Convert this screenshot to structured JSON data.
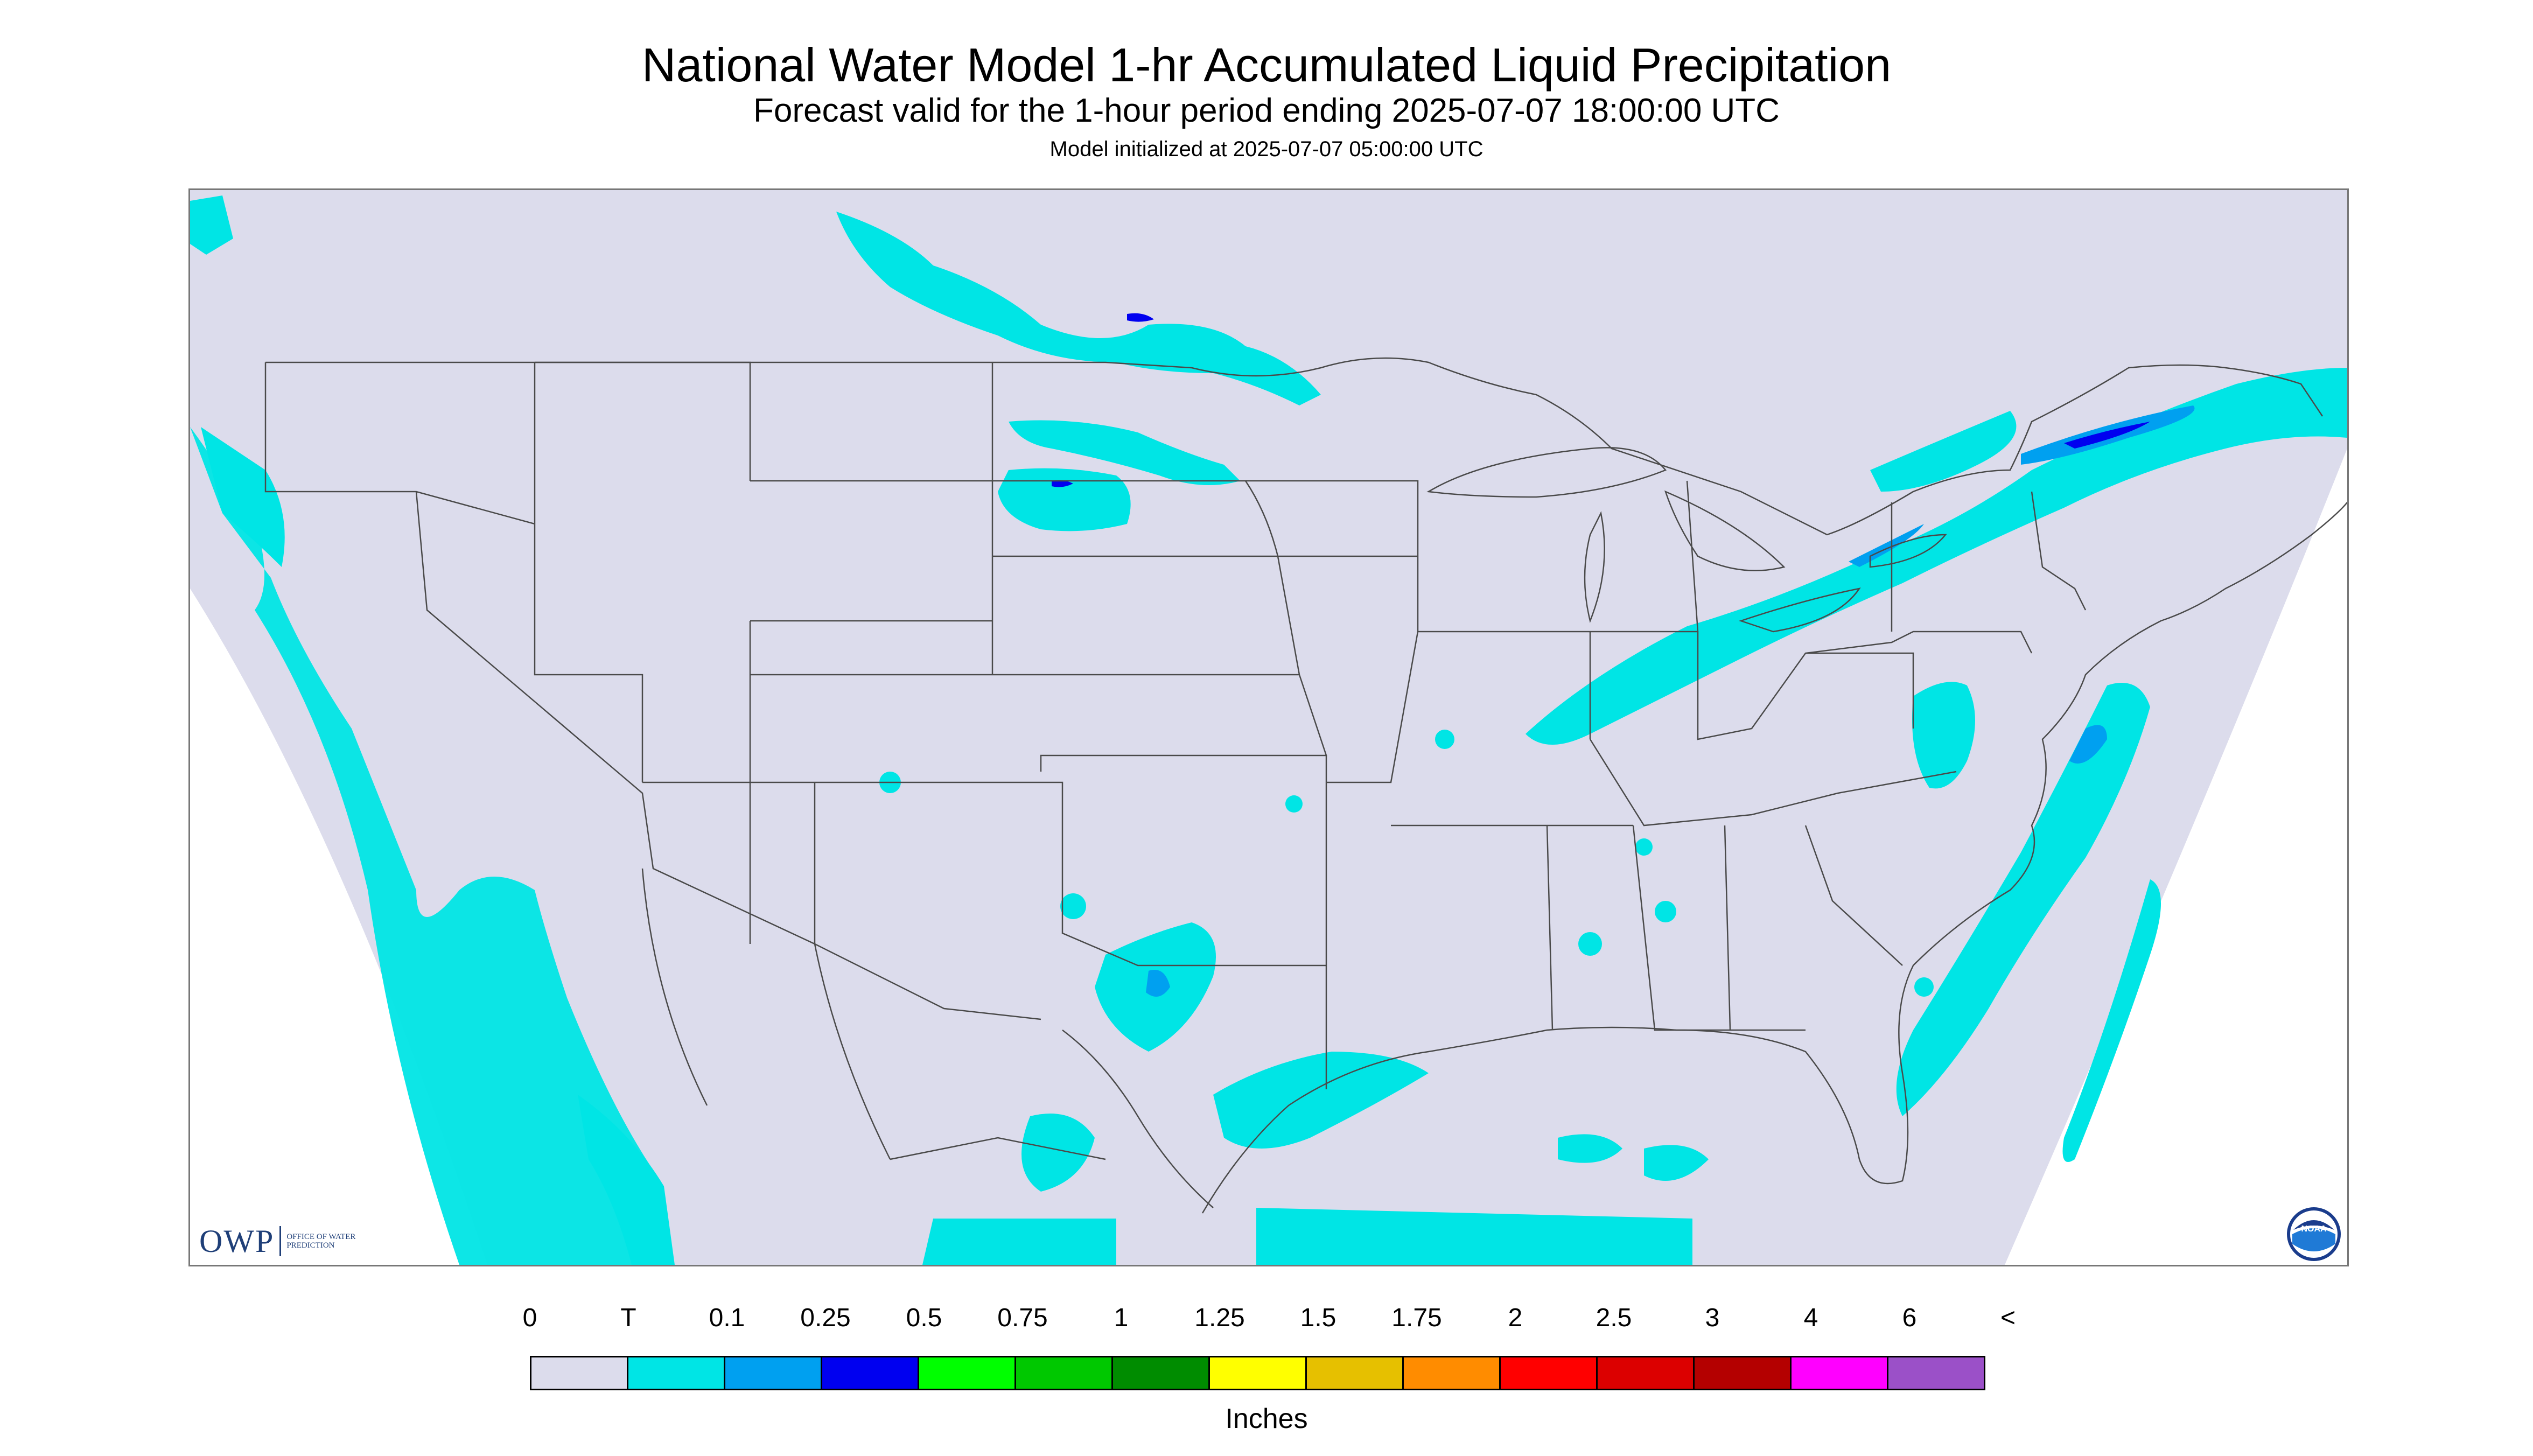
{
  "header": {
    "title": "National Water Model 1-hr Accumulated Liquid Precipitation",
    "subtitle": "Forecast valid for the 1-hour period ending 2025-07-07 18:00:00 UTC",
    "init_line": "Model initialized at 2025-07-07 05:00:00 UTC"
  },
  "map": {
    "region": "CONUS",
    "colors": {
      "background": "#dcdcec",
      "outside_domain": "#ffffff",
      "boundaries": "#4a4a4a",
      "precip_trace": "#00e5e5",
      "precip_010": "#00a0f0",
      "precip_025": "#0000f0"
    },
    "icons": [
      "owp-logo",
      "noaa-logo"
    ],
    "owp_logo": {
      "abbr": "OWP",
      "text": "OFFICE OF WATER PREDICTION"
    },
    "noaa_logo": {
      "text": "NOAA"
    }
  },
  "legend": {
    "unit": "Inches",
    "labels": [
      "0",
      "T",
      "0.1",
      "0.25",
      "0.5",
      "0.75",
      "1",
      "1.25",
      "1.5",
      "1.75",
      "2",
      "2.5",
      "3",
      "4",
      "6",
      "<"
    ],
    "colors": [
      "#dcdcec",
      "#00e5e5",
      "#00a0f0",
      "#0000f0",
      "#00ff00",
      "#00c800",
      "#008c00",
      "#ffff00",
      "#e6c000",
      "#ff8c00",
      "#ff0000",
      "#dc0000",
      "#b40000",
      "#ff00ff",
      "#9b50c8"
    ]
  }
}
